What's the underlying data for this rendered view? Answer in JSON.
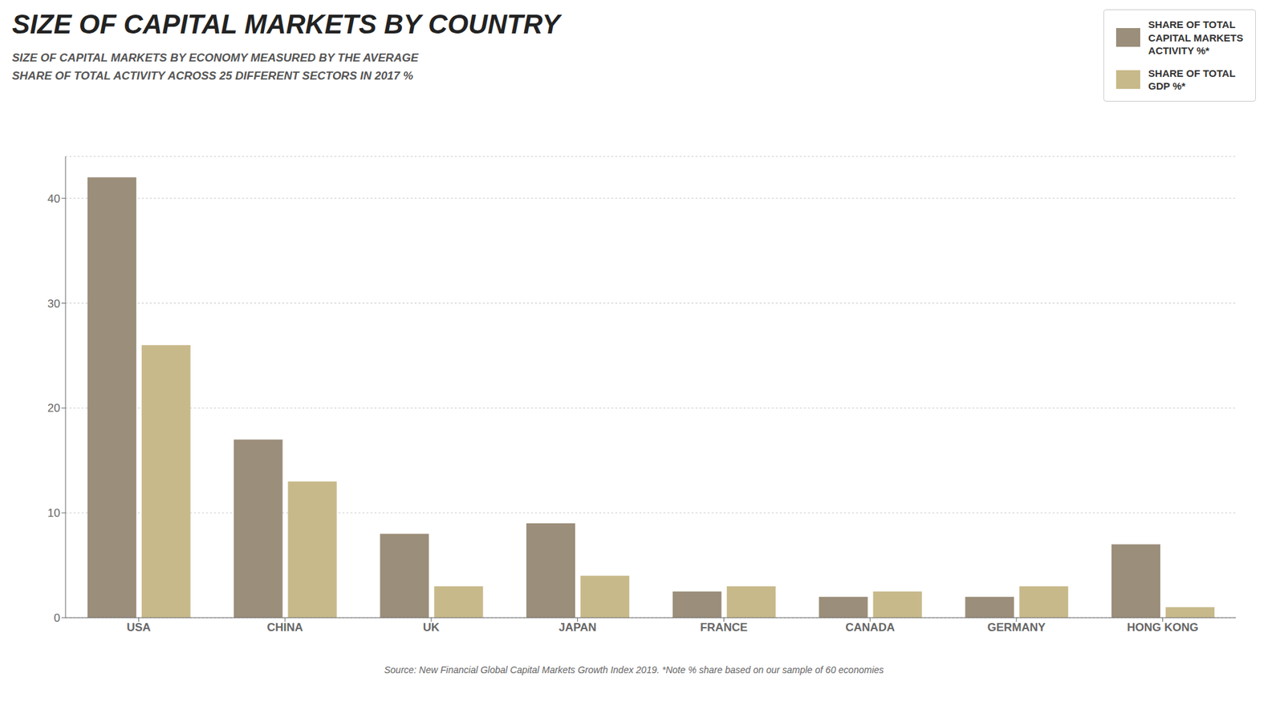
{
  "chart_data": {
    "type": "bar",
    "title": "SIZE OF CAPITAL MARKETS BY COUNTRY",
    "subtitle": "SIZE OF CAPITAL MARKETS BY ECONOMY MEASURED BY THE AVERAGE\nSHARE OF TOTAL ACTIVITY ACROSS 25 DIFFERENT SECTORS IN 2017 %",
    "source": "Source: New Financial Global Capital Markets Growth Index 2019.  *Note % share based on our sample of 60 economies",
    "categories": [
      "USA",
      "CHINA",
      "UK",
      "JAPAN",
      "FRANCE",
      "CANADA",
      "GERMANY",
      "HONG KONG"
    ],
    "series": [
      {
        "name": "SHARE OF TOTAL\nCAPITAL MARKETS\nACTIVITY %*",
        "color": "#9B8E7A",
        "values": [
          42,
          17,
          8,
          9,
          2.5,
          2.0,
          2.0,
          7
        ]
      },
      {
        "name": "SHARE OF TOTAL\nGDP %*",
        "color": "#C8B98A",
        "values": [
          26,
          13,
          3,
          4,
          3,
          2.5,
          3,
          1
        ]
      }
    ],
    "ylim": [
      0,
      44
    ],
    "yticks": [
      0,
      10,
      20,
      30,
      40
    ],
    "grid": true,
    "legend": "upper right"
  }
}
